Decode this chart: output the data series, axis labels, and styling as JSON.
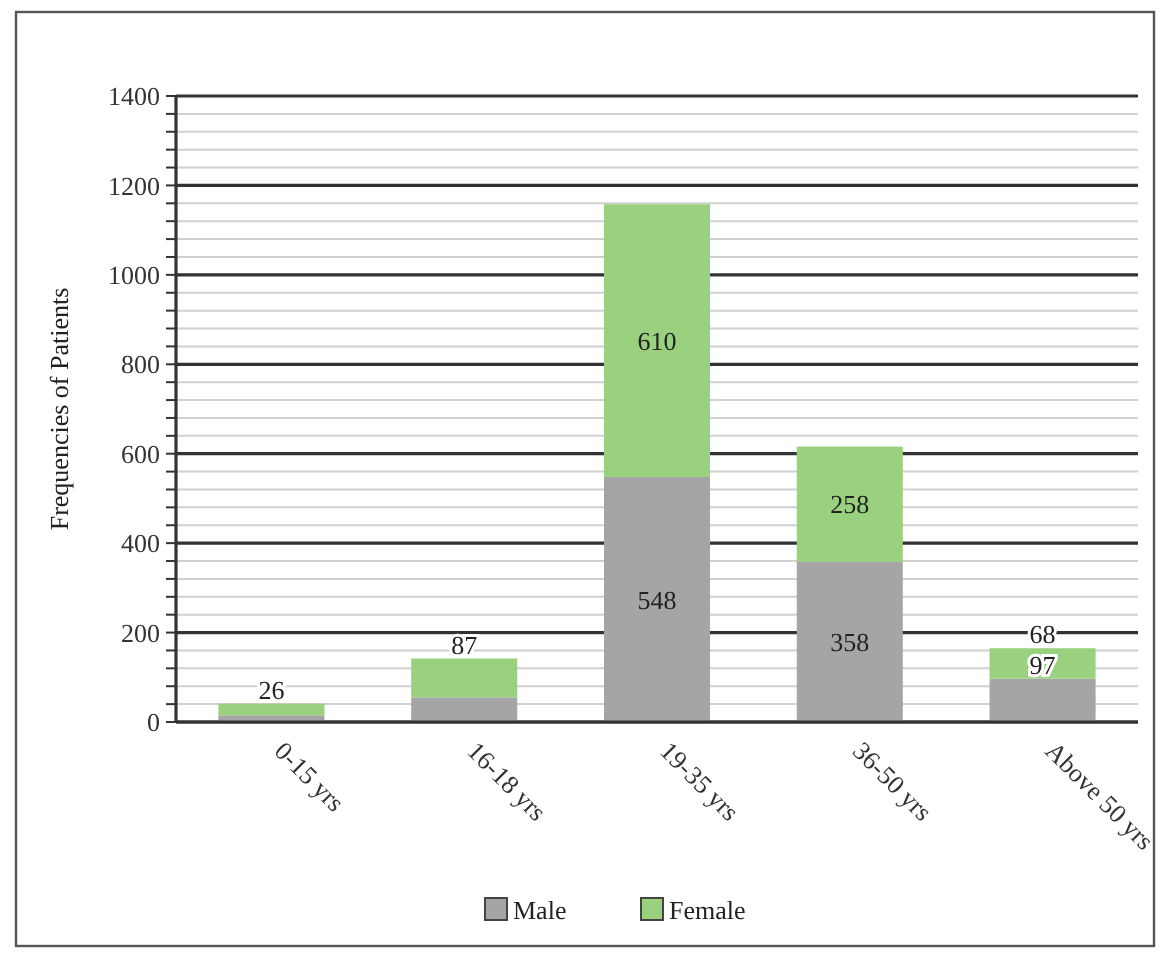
{
  "chart_data": {
    "type": "bar",
    "stacked": true,
    "ylabel": "Frequencies of Patients",
    "categories": [
      "0-15 yrs",
      "16-18 yrs",
      "19-35 yrs",
      "36-50 yrs",
      "Above 50 yrs"
    ],
    "series": [
      {
        "name": "Male",
        "color": "#a5a5a5",
        "values": [
          15,
          55,
          548,
          358,
          97
        ],
        "value_labels": [
          null,
          null,
          "548",
          "358",
          "97"
        ]
      },
      {
        "name": "Female",
        "color": "#99d17f",
        "values": [
          26,
          87,
          610,
          258,
          68
        ],
        "value_labels": [
          "26",
          "87",
          "610",
          "258",
          "68"
        ]
      }
    ],
    "ylim": [
      0,
      1400
    ],
    "yticks": [
      0,
      {
        "value": 40,
        "label": null
      },
      {
        "value": 80,
        "label": null
      },
      {
        "value": 120,
        "label": null
      },
      {
        "value": 160,
        "label": null
      },
      200,
      {
        "value": 240,
        "label": null
      },
      {
        "value": 280,
        "label": null
      },
      {
        "value": 320,
        "label": null
      },
      {
        "value": 360,
        "label": null
      },
      400,
      {
        "value": 440,
        "label": null
      },
      {
        "value": 480,
        "label": null
      },
      {
        "value": 520,
        "label": null
      },
      {
        "value": 560,
        "label": null
      },
      600,
      {
        "value": 640,
        "label": null
      },
      {
        "value": 680,
        "label": null
      },
      {
        "value": 720,
        "label": null
      },
      {
        "value": 760,
        "label": null
      },
      800,
      {
        "value": 840,
        "label": null
      },
      {
        "value": 880,
        "label": null
      },
      {
        "value": 920,
        "label": null
      },
      {
        "value": 960,
        "label": null
      },
      1000,
      {
        "value": 1040,
        "label": null
      },
      {
        "value": 1080,
        "label": null
      },
      {
        "value": 1120,
        "label": null
      },
      {
        "value": 1160,
        "label": null
      },
      1200,
      {
        "value": 1240,
        "label": null
      },
      {
        "value": 1280,
        "label": null
      },
      {
        "value": 1320,
        "label": null
      },
      {
        "value": 1360,
        "label": null
      },
      1400
    ],
    "grid": "y",
    "legend": "bottom"
  }
}
